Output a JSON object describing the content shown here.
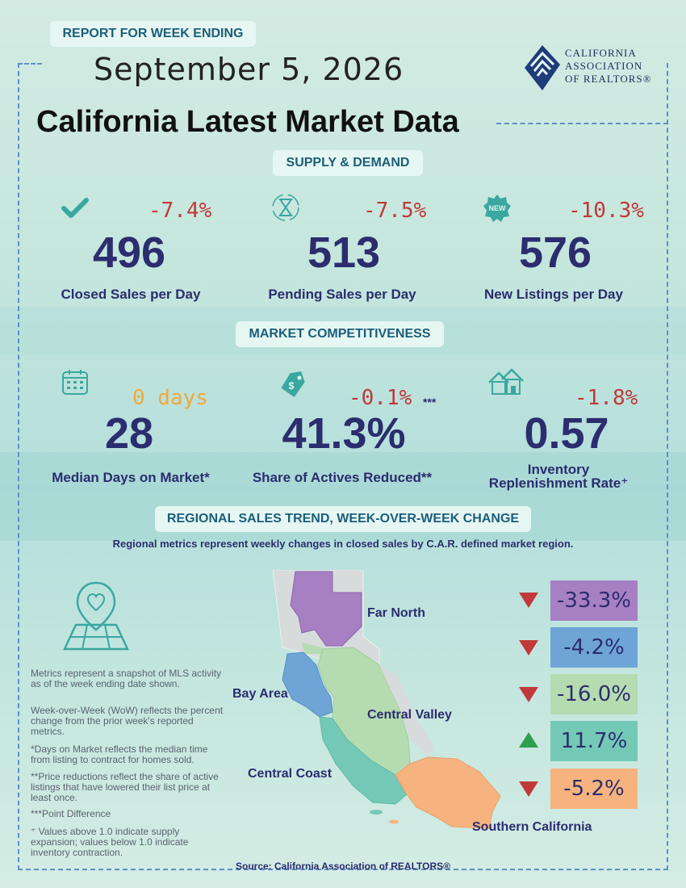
{
  "header": {
    "report_label": "REPORT FOR WEEK ENDING",
    "date": "September 5, 2026",
    "title": "California Latest Market Data",
    "logo": {
      "line1": "CALIFORNIA",
      "line2": "ASSOCIATION",
      "line3": "OF REALTORS®"
    }
  },
  "supply_demand": {
    "heading": "SUPPLY & DEMAND",
    "items": [
      {
        "value": "496",
        "change": "-7.4%",
        "label": "Closed Sales per Day",
        "icon": "checkmark-icon"
      },
      {
        "value": "513",
        "change": "-7.5%",
        "label": "Pending Sales per Day",
        "icon": "hourglass-icon"
      },
      {
        "value": "576",
        "change": "-10.3%",
        "label": "New Listings per Day",
        "icon": "new-badge-icon",
        "badge_text": "NEW"
      }
    ]
  },
  "competitiveness": {
    "heading": "MARKET COMPETITIVENESS",
    "items": [
      {
        "value": "28",
        "change": "0 days",
        "label": "Median Days on Market*",
        "icon": "calendar-icon"
      },
      {
        "value": "41.3%",
        "change": "-0.1%",
        "change_note": "***",
        "label": "Share of Actives Reduced**",
        "icon": "price-tag-icon"
      },
      {
        "value": "0.57",
        "change": "-1.8%",
        "label_line1": "Inventory",
        "label_line2": "Replenishment Rate⁺",
        "icon": "houses-icon"
      }
    ]
  },
  "regional": {
    "heading": "REGIONAL SALES TREND, WEEK-OVER-WEEK CHANGE",
    "subtitle": "Regional metrics represent weekly changes in closed sales by C.A.R. defined market region.",
    "regions": [
      {
        "name": "Far North",
        "change": "-33.3%",
        "direction": "down",
        "color": "#a77fc3"
      },
      {
        "name": "Bay Area",
        "change": "-4.2%",
        "direction": "down",
        "color": "#6fa4d6"
      },
      {
        "name": "Central Valley",
        "change": "-16.0%",
        "direction": "down",
        "color": "#b5dcb0"
      },
      {
        "name": "Central Coast",
        "change": "11.7%",
        "direction": "up",
        "color": "#74c9b6"
      },
      {
        "name": "Southern California",
        "change": "-5.2%",
        "direction": "down",
        "color": "#f7b37f"
      }
    ],
    "colors": {
      "down": "#c0393b",
      "up": "#2e9e4f"
    }
  },
  "notes": [
    "Metrics represent a snapshot of MLS activity as of the week ending date shown.",
    "Week-over-Week (WoW) reflects the percent change from the prior week's reported metrics.",
    "*Days on Market reflects the median time from listing to contract for homes sold.",
    "**Price reductions reflect the share of active listings that have lowered their list price at least once.",
    "***Point Difference",
    "⁺ Values above 1.0 indicate supply expansion; values below 1.0 indicate inventory contraction."
  ],
  "source": "Source: California Association of REALTORS®",
  "accent": {
    "teal": "#3aa8a0",
    "navy": "#2b2d6e",
    "red": "#c0393b",
    "orange": "#f2a93b"
  }
}
